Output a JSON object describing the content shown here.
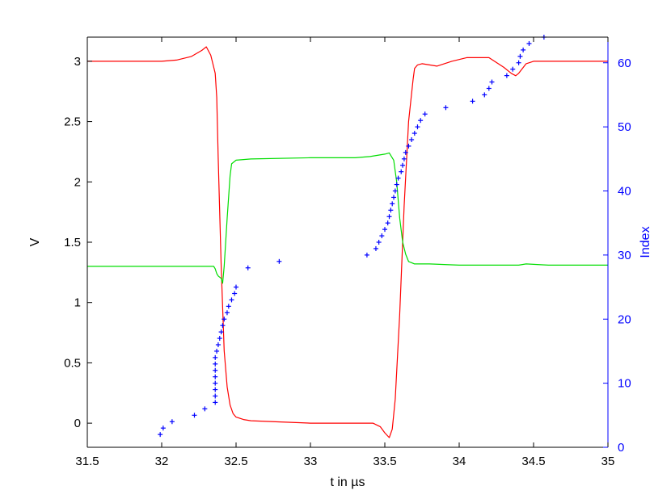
{
  "chart_data": {
    "type": "line",
    "xlabel": "t in µs",
    "ylabel_left": "V",
    "ylabel_right": "Index",
    "xlim": [
      31.5,
      35
    ],
    "ylim_left": [
      -0.2,
      3.2
    ],
    "ylim_right": [
      0,
      64
    ],
    "xticks": [
      31.5,
      32,
      32.5,
      33,
      33.5,
      34,
      34.5,
      35
    ],
    "xtick_labels": [
      "31.5",
      "32",
      "32.5",
      "33",
      "33.5",
      "34",
      "34.5",
      "35"
    ],
    "yticks_left": [
      0,
      0.5,
      1,
      1.5,
      2,
      2.5,
      3
    ],
    "ytick_labels_left": [
      "0",
      "0.5",
      "1",
      "1.5",
      "2",
      "2.5",
      "3"
    ],
    "yticks_right": [
      0,
      10,
      20,
      30,
      40,
      50,
      60
    ],
    "ytick_labels_right": [
      "0",
      "10",
      "20",
      "30",
      "40",
      "50",
      "60"
    ],
    "grid": false,
    "legend": "none",
    "colors": {
      "red": "#ff0000",
      "green": "#00dd00",
      "blue": "#0000ff",
      "axis": "#000000"
    },
    "series": [
      {
        "color": "red",
        "axis": "left",
        "style": "line",
        "x": [
          31.5,
          32.0,
          32.1,
          32.2,
          32.27,
          32.3,
          32.33,
          32.35,
          32.36,
          32.37,
          32.38,
          32.4,
          32.42,
          32.44,
          32.46,
          32.48,
          32.5,
          32.55,
          32.6,
          32.8,
          33.0,
          33.3,
          33.42,
          33.47,
          33.5,
          33.53,
          33.55,
          33.57,
          33.6,
          33.63,
          33.66,
          33.69,
          33.7,
          33.72,
          33.75,
          33.8,
          33.85,
          33.9,
          33.95,
          34.05,
          34.2,
          34.3,
          34.35,
          34.38,
          34.4,
          34.45,
          34.5,
          34.6,
          35.0
        ],
        "y": [
          3.0,
          3.0,
          3.01,
          3.04,
          3.09,
          3.12,
          3.05,
          2.95,
          2.9,
          2.7,
          2.2,
          1.3,
          0.6,
          0.3,
          0.15,
          0.08,
          0.05,
          0.03,
          0.02,
          0.01,
          0.0,
          0.0,
          0.0,
          -0.03,
          -0.08,
          -0.12,
          -0.05,
          0.2,
          0.9,
          1.8,
          2.5,
          2.85,
          2.94,
          2.97,
          2.98,
          2.97,
          2.96,
          2.98,
          3.0,
          3.03,
          3.03,
          2.95,
          2.9,
          2.88,
          2.9,
          2.98,
          3.0,
          3.0,
          3.0
        ]
      },
      {
        "color": "green",
        "axis": "left",
        "style": "line",
        "x": [
          31.5,
          32.0,
          32.35,
          32.36,
          32.37,
          32.38,
          32.4,
          32.41,
          32.42,
          32.44,
          32.46,
          32.47,
          32.5,
          32.6,
          33.0,
          33.3,
          33.4,
          33.5,
          33.53,
          33.56,
          33.58,
          33.6,
          33.62,
          33.64,
          33.66,
          33.7,
          33.8,
          34.0,
          34.3,
          34.4,
          34.45,
          34.6,
          35.0
        ],
        "y": [
          1.3,
          1.3,
          1.3,
          1.28,
          1.24,
          1.22,
          1.2,
          1.16,
          1.3,
          1.7,
          2.05,
          2.15,
          2.18,
          2.19,
          2.2,
          2.2,
          2.21,
          2.23,
          2.24,
          2.18,
          2.0,
          1.7,
          1.5,
          1.4,
          1.34,
          1.32,
          1.32,
          1.31,
          1.31,
          1.31,
          1.32,
          1.31,
          1.31
        ]
      },
      {
        "color": "blue",
        "axis": "right",
        "style": "plus-markers",
        "x": [
          31.99,
          32.01,
          32.07,
          32.22,
          32.29,
          32.36,
          32.36,
          32.36,
          32.36,
          32.36,
          32.36,
          32.36,
          32.36,
          32.37,
          32.38,
          32.39,
          32.4,
          32.41,
          32.42,
          32.44,
          32.45,
          32.47,
          32.49,
          32.5,
          32.58,
          32.79,
          33.38,
          33.44,
          33.46,
          33.48,
          33.5,
          33.52,
          33.53,
          33.54,
          33.55,
          33.56,
          33.57,
          33.58,
          33.59,
          33.61,
          33.62,
          33.63,
          33.64,
          33.66,
          33.68,
          33.7,
          33.72,
          33.74,
          33.77,
          33.91,
          34.09,
          34.17,
          34.2,
          34.22,
          34.32,
          34.36,
          34.4,
          34.41,
          34.43,
          34.47,
          34.57
        ],
        "y": [
          2,
          3,
          4,
          5,
          6,
          7,
          8,
          9,
          10,
          11,
          12,
          13,
          14,
          15,
          16,
          17,
          18,
          19,
          20,
          21,
          22,
          23,
          24,
          25,
          28,
          29,
          30,
          31,
          32,
          33,
          34,
          35,
          36,
          37,
          38,
          39,
          40,
          41,
          42,
          43,
          44,
          45,
          46,
          47,
          48,
          49,
          50,
          51,
          52,
          53,
          54,
          55,
          56,
          57,
          58,
          59,
          60,
          61,
          62,
          63,
          64
        ]
      }
    ]
  }
}
